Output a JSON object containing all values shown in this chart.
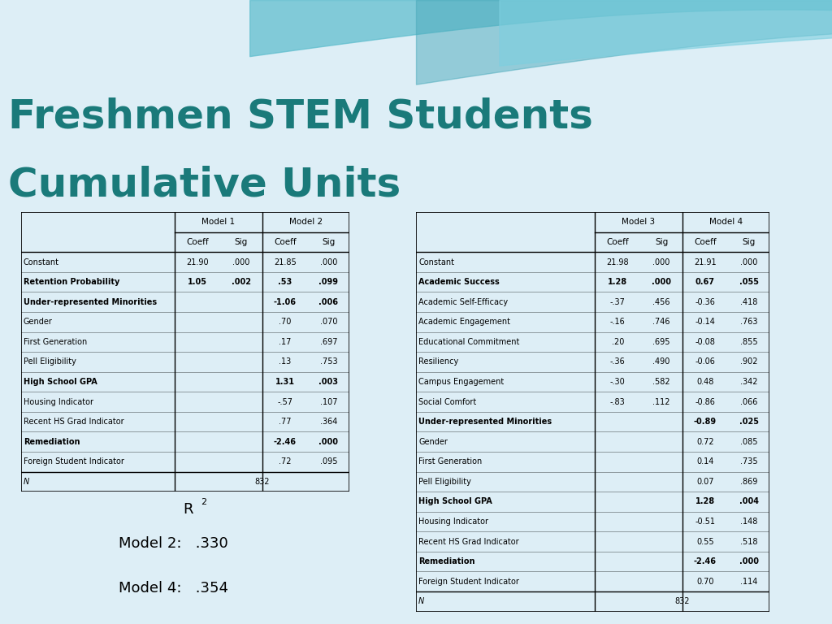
{
  "title_line1": "Freshmen STEM Students",
  "title_line2": "Cumulative Units",
  "title_color": "#1a7a7a",
  "bg_color": "#e8f4f8",
  "table_bg": "#f0f8ff",
  "table1_rows": [
    [
      "Constant",
      "21.90",
      ".000",
      "21.85",
      ".000"
    ],
    [
      "Retention Probability",
      "1.05",
      ".002",
      ".53",
      ".099"
    ],
    [
      "Under-represented Minorities",
      "",
      "",
      "-1.06",
      ".006"
    ],
    [
      "Gender",
      "",
      "",
      ".70",
      ".070"
    ],
    [
      "First Generation",
      "",
      "",
      ".17",
      ".697"
    ],
    [
      "Pell Eligibility",
      "",
      "",
      ".13",
      ".753"
    ],
    [
      "High School GPA",
      "",
      "",
      "1.31",
      ".003"
    ],
    [
      "Housing Indicator",
      "",
      "",
      "-.57",
      ".107"
    ],
    [
      "Recent HS Grad Indicator",
      "",
      "",
      ".77",
      ".364"
    ],
    [
      "Remediation",
      "",
      "",
      "-2.46",
      ".000"
    ],
    [
      "Foreign Student Indicator",
      "",
      "",
      ".72",
      ".095"
    ]
  ],
  "table1_bold_rows": [
    1,
    2,
    6,
    9
  ],
  "table1_n": "832",
  "table2_rows": [
    [
      "Constant",
      "21.98",
      ".000",
      "21.91",
      ".000"
    ],
    [
      "Academic Success",
      "1.28",
      ".000",
      "0.67",
      ".055"
    ],
    [
      "Academic Self-Efficacy",
      "-.37",
      ".456",
      "-0.36",
      ".418"
    ],
    [
      "Academic Engagement",
      "-.16",
      ".746",
      "-0.14",
      ".763"
    ],
    [
      "Educational Commitment",
      ".20",
      ".695",
      "-0.08",
      ".855"
    ],
    [
      "Resiliency",
      "-.36",
      ".490",
      "-0.06",
      ".902"
    ],
    [
      "Campus Engagement",
      "-.30",
      ".582",
      "0.48",
      ".342"
    ],
    [
      "Social Comfort",
      "-.83",
      ".112",
      "-0.86",
      ".066"
    ],
    [
      "Under-represented Minorities",
      "",
      "",
      "-0.89",
      ".025"
    ],
    [
      "Gender",
      "",
      "",
      "0.72",
      ".085"
    ],
    [
      "First Generation",
      "",
      "",
      "0.14",
      ".735"
    ],
    [
      "Pell Eligibility",
      "",
      "",
      "0.07",
      ".869"
    ],
    [
      "High School GPA",
      "",
      "",
      "1.28",
      ".004"
    ],
    [
      "Housing Indicator",
      "",
      "",
      "-0.51",
      ".148"
    ],
    [
      "Recent HS Grad Indicator",
      "",
      "",
      "0.55",
      ".518"
    ],
    [
      "Remediation",
      "",
      "",
      "-2.46",
      ".000"
    ],
    [
      "Foreign Student Indicator",
      "",
      "",
      "0.70",
      ".114"
    ]
  ],
  "table2_bold_rows": [
    1,
    8,
    12,
    15
  ],
  "table2_n": "832",
  "r2_model2": ".330",
  "r2_model4": ".354"
}
